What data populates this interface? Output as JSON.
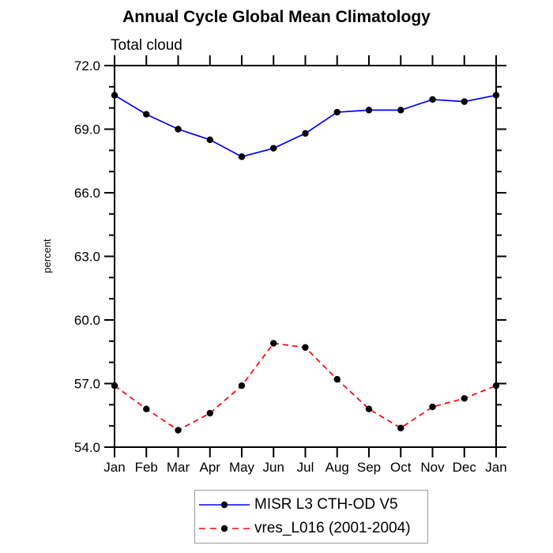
{
  "title": "Annual Cycle Global Mean Climatology",
  "subtitle": "Total cloud",
  "chart_data": {
    "type": "line",
    "categories": [
      "Jan",
      "Feb",
      "Mar",
      "Apr",
      "May",
      "Jun",
      "Jul",
      "Aug",
      "Sep",
      "Oct",
      "Nov",
      "Dec",
      "Jan"
    ],
    "series": [
      {
        "name": "MISR L3 CTH-OD V5",
        "color": "#0000ff",
        "line_style": "solid",
        "marker": "filled-circle",
        "marker_color": "#000000",
        "values": [
          70.6,
          69.7,
          69.0,
          68.5,
          67.7,
          68.1,
          68.8,
          69.8,
          69.9,
          69.9,
          70.4,
          70.3,
          70.6
        ]
      },
      {
        "name": "vres_L016 (2001-2004)",
        "color": "#ff0000",
        "line_style": "dashed",
        "marker": "filled-circle",
        "marker_color": "#000000",
        "values": [
          56.9,
          55.8,
          54.8,
          55.6,
          56.9,
          58.9,
          58.7,
          57.2,
          55.8,
          54.9,
          55.9,
          56.3,
          56.9
        ]
      }
    ],
    "xlabel": "",
    "ylabel": "percent",
    "ylim": [
      54.0,
      72.0
    ],
    "ytick_major_labels": [
      "54.0",
      "57.0",
      "60.0",
      "63.0",
      "66.0",
      "69.0",
      "72.0"
    ],
    "ytick_major_values": [
      54.0,
      57.0,
      60.0,
      63.0,
      66.0,
      69.0,
      72.0
    ],
    "ytick_minor_interval": 1.0,
    "grid": false,
    "frame": "box-with-outward-ticks",
    "legend_position": "bottom-center",
    "axis_color": "#000000"
  }
}
